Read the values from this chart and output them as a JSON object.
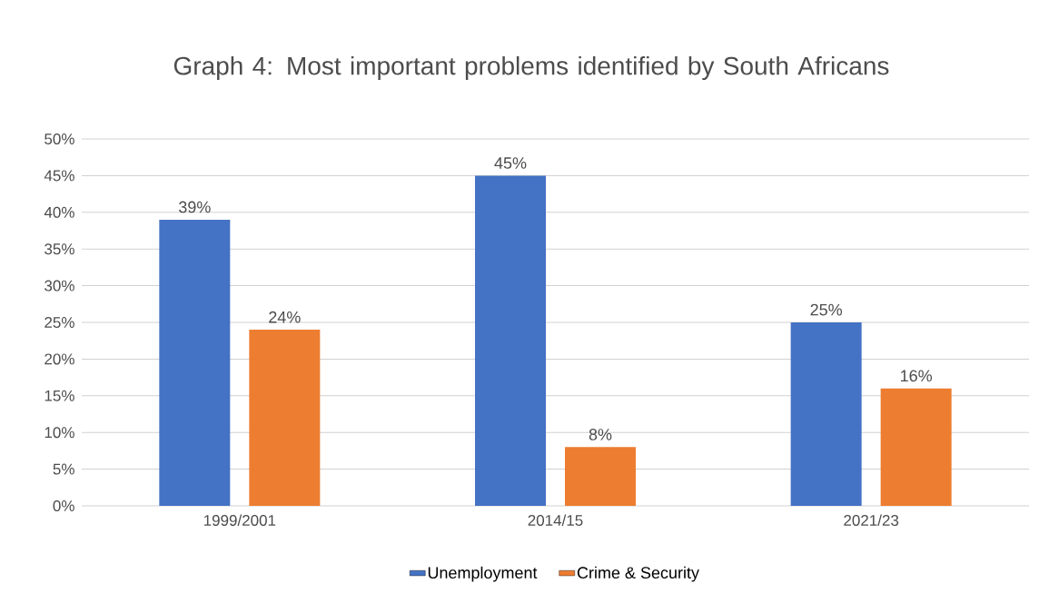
{
  "chart_data": {
    "type": "bar",
    "title": "Graph 4: Most important problems identified by South Africans",
    "categories": [
      "1999/2001",
      "2014/15",
      "2021/23"
    ],
    "series": [
      {
        "name": "Unemployment",
        "color": "#4472c4",
        "values": [
          39,
          45,
          25
        ],
        "value_labels": [
          "39%",
          "45%",
          "25%"
        ]
      },
      {
        "name": "Crime & Security",
        "color": "#ed7d31",
        "values": [
          24,
          8,
          16
        ],
        "value_labels": [
          "24%",
          "8%",
          "16%"
        ]
      }
    ],
    "ylim": [
      0,
      50
    ],
    "yticks": [
      {
        "value": 0,
        "label": "0%"
      },
      {
        "value": 5,
        "label": "5%"
      },
      {
        "value": 10,
        "label": "10%"
      },
      {
        "value": 15,
        "label": "15%"
      },
      {
        "value": 20,
        "label": "20%"
      },
      {
        "value": 25,
        "label": "25%"
      },
      {
        "value": 30,
        "label": "30%"
      },
      {
        "value": 35,
        "label": "35%"
      },
      {
        "value": 40,
        "label": "40%"
      },
      {
        "value": 45,
        "label": "45%"
      },
      {
        "value": 50,
        "label": "50%"
      }
    ],
    "grid": "y",
    "legend": "bottom"
  }
}
